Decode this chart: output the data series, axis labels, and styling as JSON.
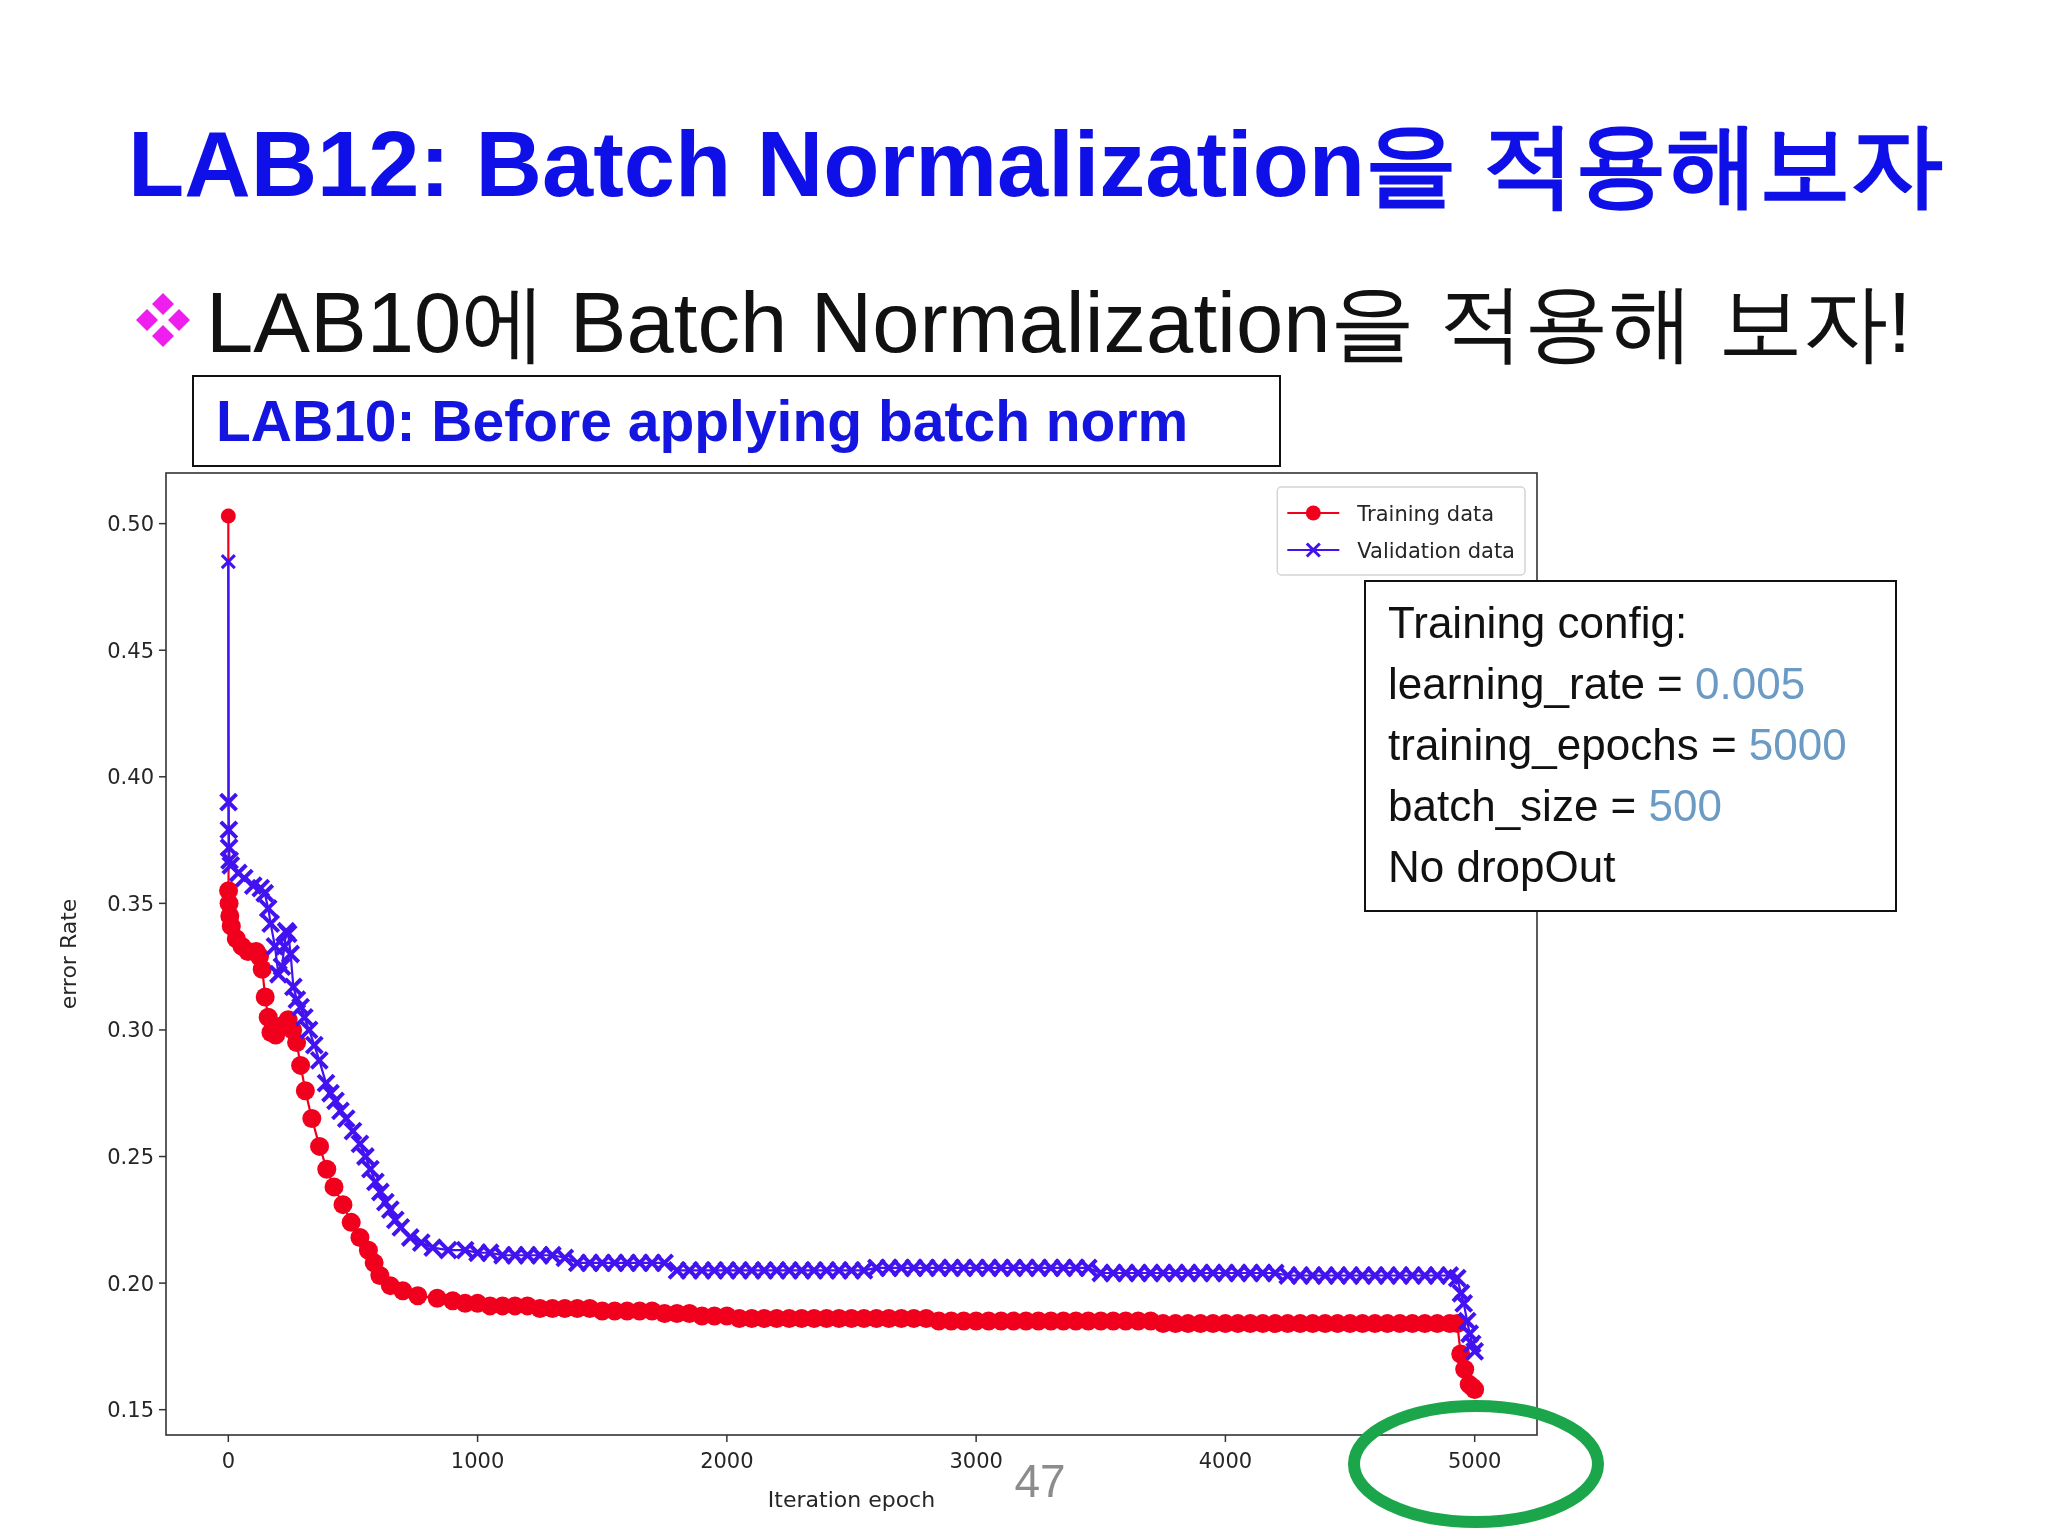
{
  "chart_data": {
    "type": "line",
    "title": "LAB12: Batch Normalization을 적용해보자",
    "subtitle": "LAB10에 Batch Normalization을 적용해 보자!",
    "xlabel": "Iteration epoch",
    "ylabel": "error Rate",
    "annotations": [
      "LAB10: Before applying batch norm",
      "Training config:\nlearning_rate = 0.005\ntraining_epochs = 5000\nbatch_size = 500\nNo dropOut",
      "47"
    ],
    "xlim": [
      -250,
      5250
    ],
    "ylim": [
      0.14,
      0.52
    ],
    "xticks": [
      0,
      1000,
      2000,
      3000,
      4000,
      5000
    ],
    "yticks": [
      0.15,
      {
        "value": 0.2,
        "label": "0.20"
      },
      0.25,
      {
        "value": 0.3,
        "label": "0.30"
      },
      0.35,
      {
        "value": 0.4,
        "label": "0.40"
      },
      0.45,
      {
        "value": 0.5,
        "label": "0.50"
      }
    ],
    "legend": "top right",
    "grid": false,
    "line_style": "solid",
    "series": [
      {
        "name": "Training data",
        "color": "#f0001c",
        "marker": "circle",
        "x": [
          0,
          1,
          3,
          6,
          12,
          32,
          55,
          79,
          112,
          125,
          136,
          148,
          160,
          171,
          190,
          222,
          240,
          258,
          274,
          290,
          309,
          335,
          366,
          395,
          424,
          460,
          493,
          528,
          562,
          585,
          608,
          650,
          700,
          760,
          838,
          900,
          950,
          1000,
          1050,
          1100,
          1150,
          1200,
          1250,
          1300,
          1350,
          1400,
          1450,
          1500,
          1550,
          1600,
          1650,
          1700,
          1750,
          1800,
          1850,
          1900,
          1950,
          2000,
          2050,
          2100,
          2150,
          2200,
          2250,
          2300,
          2350,
          2400,
          2450,
          2500,
          2550,
          2600,
          2650,
          2700,
          2750,
          2800,
          2850,
          2900,
          2950,
          3000,
          3050,
          3100,
          3150,
          3200,
          3250,
          3300,
          3350,
          3400,
          3450,
          3500,
          3550,
          3600,
          3650,
          3700,
          3750,
          3800,
          3850,
          3900,
          3950,
          4000,
          4050,
          4100,
          4150,
          4200,
          4250,
          4300,
          4350,
          4400,
          4450,
          4500,
          4550,
          4600,
          4650,
          4700,
          4750,
          4800,
          4850,
          4900,
          4930,
          4944,
          4960,
          4978,
          4990,
          5000
        ],
        "values": [
          0.503,
          0.355,
          0.35,
          0.345,
          0.341,
          0.336,
          0.333,
          0.331,
          0.331,
          0.329,
          0.324,
          0.313,
          0.305,
          0.299,
          0.298,
          0.302,
          0.304,
          0.3,
          0.295,
          0.286,
          0.276,
          0.265,
          0.254,
          0.245,
          0.238,
          0.231,
          0.224,
          0.218,
          0.213,
          0.208,
          0.203,
          0.199,
          0.197,
          0.195,
          0.194,
          0.193,
          0.192,
          0.192,
          0.191,
          0.191,
          0.191,
          0.191,
          0.19,
          0.19,
          0.19,
          0.19,
          0.19,
          0.189,
          0.189,
          0.189,
          0.189,
          0.189,
          0.188,
          0.188,
          0.188,
          0.187,
          0.187,
          0.187,
          0.186,
          0.186,
          0.186,
          0.186,
          0.186,
          0.186,
          0.186,
          0.186,
          0.186,
          0.186,
          0.186,
          0.186,
          0.186,
          0.186,
          0.186,
          0.186,
          0.185,
          0.185,
          0.185,
          0.185,
          0.185,
          0.185,
          0.185,
          0.185,
          0.185,
          0.185,
          0.185,
          0.185,
          0.185,
          0.185,
          0.185,
          0.185,
          0.185,
          0.185,
          0.184,
          0.184,
          0.184,
          0.184,
          0.184,
          0.184,
          0.184,
          0.184,
          0.184,
          0.184,
          0.184,
          0.184,
          0.184,
          0.184,
          0.184,
          0.184,
          0.184,
          0.184,
          0.184,
          0.184,
          0.184,
          0.184,
          0.184,
          0.184,
          0.184,
          0.172,
          0.166,
          0.16,
          0.159,
          0.158
        ]
      },
      {
        "name": "Validation data",
        "color": "#4312f0",
        "marker": "cross",
        "x": [
          0,
          1,
          2,
          3,
          5,
          10,
          40,
          64,
          100,
          130,
          146,
          160,
          170,
          187,
          201,
          215,
          225,
          232,
          240,
          250,
          261,
          275,
          290,
          305,
          324,
          345,
          365,
          392,
          410,
          430,
          450,
          473,
          500,
          528,
          550,
          570,
          590,
          610,
          630,
          650,
          670,
          692,
          730,
          774,
          820,
          882,
          950,
          1000,
          1050,
          1100,
          1150,
          1200,
          1250,
          1300,
          1350,
          1400,
          1450,
          1500,
          1550,
          1600,
          1650,
          1700,
          1750,
          1800,
          1850,
          1900,
          1950,
          2000,
          2050,
          2100,
          2150,
          2200,
          2250,
          2300,
          2350,
          2400,
          2450,
          2500,
          2550,
          2600,
          2650,
          2700,
          2750,
          2800,
          2850,
          2900,
          2950,
          3000,
          3050,
          3100,
          3150,
          3200,
          3250,
          3300,
          3350,
          3400,
          3450,
          3500,
          3550,
          3600,
          3650,
          3700,
          3750,
          3800,
          3850,
          3900,
          3950,
          4000,
          4050,
          4100,
          4150,
          4200,
          4250,
          4300,
          4350,
          4400,
          4450,
          4500,
          4550,
          4600,
          4650,
          4700,
          4750,
          4800,
          4850,
          4900,
          4930,
          4945,
          4956,
          4970,
          4980,
          4990,
          5000
        ],
        "values": [
          0.485,
          0.39,
          0.379,
          0.372,
          0.367,
          0.365,
          0.362,
          0.36,
          0.357,
          0.356,
          0.354,
          0.348,
          0.342,
          0.333,
          0.322,
          0.325,
          0.333,
          0.339,
          0.338,
          0.33,
          0.317,
          0.312,
          0.309,
          0.305,
          0.3,
          0.294,
          0.288,
          0.279,
          0.275,
          0.272,
          0.268,
          0.265,
          0.26,
          0.255,
          0.25,
          0.245,
          0.24,
          0.236,
          0.232,
          0.229,
          0.225,
          0.222,
          0.218,
          0.216,
          0.214,
          0.213,
          0.213,
          0.212,
          0.212,
          0.211,
          0.211,
          0.211,
          0.211,
          0.211,
          0.21,
          0.208,
          0.208,
          0.208,
          0.208,
          0.208,
          0.208,
          0.208,
          0.208,
          0.205,
          0.205,
          0.205,
          0.205,
          0.205,
          0.205,
          0.205,
          0.205,
          0.205,
          0.205,
          0.205,
          0.205,
          0.205,
          0.205,
          0.205,
          0.205,
          0.206,
          0.206,
          0.206,
          0.206,
          0.206,
          0.206,
          0.206,
          0.206,
          0.206,
          0.206,
          0.206,
          0.206,
          0.206,
          0.206,
          0.206,
          0.206,
          0.206,
          0.206,
          0.204,
          0.204,
          0.204,
          0.204,
          0.204,
          0.204,
          0.204,
          0.204,
          0.204,
          0.204,
          0.204,
          0.204,
          0.204,
          0.204,
          0.204,
          0.203,
          0.203,
          0.203,
          0.203,
          0.203,
          0.203,
          0.203,
          0.203,
          0.203,
          0.203,
          0.203,
          0.203,
          0.203,
          0.203,
          0.202,
          0.196,
          0.192,
          0.185,
          0.18,
          0.176,
          0.173
        ]
      }
    ]
  }
}
